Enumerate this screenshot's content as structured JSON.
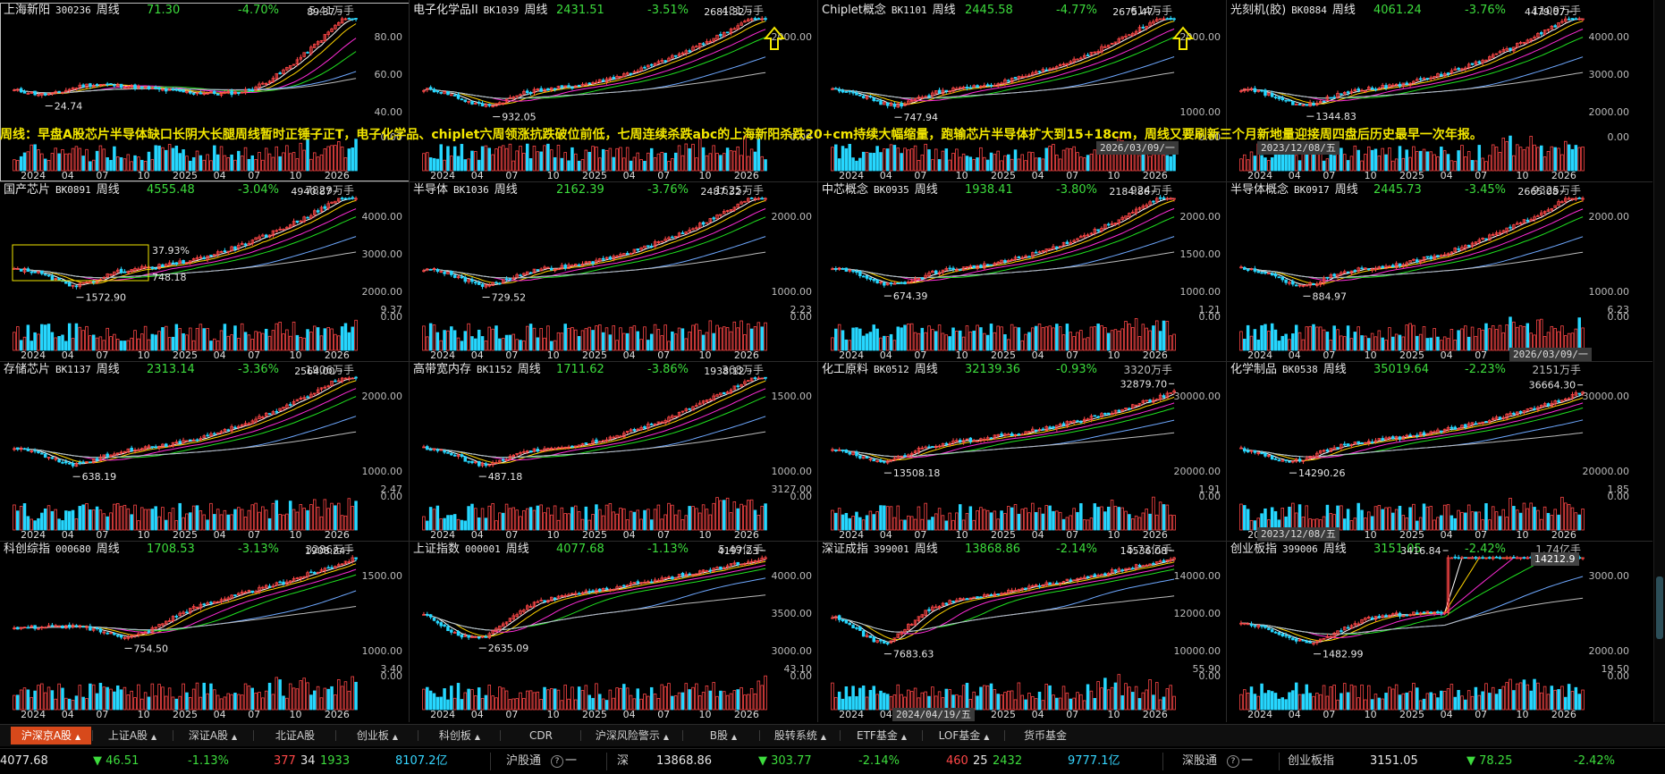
{
  "colors": {
    "up": "#ff4747",
    "down": "#3ddc3d",
    "vol_down": "#26d7ff",
    "ma": [
      "#ffffff",
      "#ffd400",
      "#ff2cd7",
      "#20e020",
      "#6ea8ff",
      "#bcbcbc"
    ],
    "accent": "#d7491b",
    "annotation": "#f2e600"
  },
  "panels": [
    {
      "name": "上海新阳",
      "code": "300236",
      "period": "周线",
      "price": "71.30",
      "change": "-4.70%",
      "volume": "5.41万手",
      "hi": "89.37",
      "lo": "24.74",
      "yticks": [
        "80.00",
        "60.00",
        "40.00",
        "0.00"
      ],
      "vol_tick": "",
      "xlabels": [
        "2024",
        "04",
        "07",
        "10",
        "2025",
        "04",
        "07",
        "10",
        "2026"
      ],
      "arrow": false
    },
    {
      "name": "电子化学品II",
      "code": "BK1039",
      "period": "周线",
      "price": "2431.51",
      "change": "-3.51%",
      "volume": "481万手",
      "hi": "2681.32",
      "lo": "932.05",
      "yticks": [
        "2000.00",
        "0.00"
      ],
      "vol_tick": "",
      "xlabels": [
        "2024",
        "04",
        "07",
        "10",
        "2025",
        "04",
        "07",
        "10",
        "2026"
      ],
      "arrow": true
    },
    {
      "name": "Chiplet概念",
      "code": "BK1101",
      "period": "周线",
      "price": "2445.58",
      "change": "-4.77%",
      "volume": "614万手",
      "hi": "2675.47",
      "lo": "747.94",
      "yticks": [
        "2000.00",
        "1000.00",
        "0.00"
      ],
      "vol_tick": "",
      "xlabels": [
        "2024",
        "04",
        "07",
        "10",
        "2025",
        "04",
        "07",
        "10",
        "2026"
      ],
      "arrow": true
    },
    {
      "name": "光刻机(胶)",
      "code": "BK0884",
      "period": "周线",
      "price": "4061.24",
      "change": "-3.76%",
      "volume": "1109万手",
      "hi": "4479.07",
      "lo": "1344.83",
      "yticks": [
        "4000.00",
        "3000.00",
        "2000.00",
        "0.00"
      ],
      "vol_tick": "",
      "xlabels": [
        "2024",
        "04",
        "07",
        "10",
        "2025",
        "04",
        "07",
        "10",
        "2026"
      ],
      "arrow": false
    },
    {
      "name": "国产芯片",
      "code": "BK0891",
      "period": "周线",
      "price": "4555.48",
      "change": "-3.04%",
      "volume": "7829万手",
      "hi": "4940.87",
      "lo": "1572.90",
      "yticks": [
        "4000.00",
        "3000.00",
        "2000.00",
        "0.00"
      ],
      "vol_tick": "9.37",
      "xlabels": [
        "2024",
        "04",
        "07",
        "10",
        "2025",
        "04",
        "07",
        "10",
        "2026"
      ],
      "arrow": false,
      "box_pct": "37.93%",
      "box_val": "748.18"
    },
    {
      "name": "半导体",
      "code": "BK1036",
      "period": "周线",
      "price": "2162.39",
      "change": "-3.76%",
      "volume": "1625万手",
      "hi": "2487.32",
      "lo": "729.52",
      "yticks": [
        "2000.00",
        "1000.00",
        "0.00"
      ],
      "vol_tick": "2.23",
      "xlabels": [
        "2024",
        "04",
        "07",
        "10",
        "2025",
        "04",
        "07",
        "10",
        "2026"
      ],
      "arrow": false
    },
    {
      "name": "中芯概念",
      "code": "BK0935",
      "period": "周线",
      "price": "1938.41",
      "change": "-3.80%",
      "volume": "924万手",
      "hi": "2184.86",
      "lo": "674.39",
      "yticks": [
        "2000.00",
        "1500.00",
        "1000.00",
        "0.00"
      ],
      "vol_tick": "1.21",
      "xlabels": [
        "2024",
        "04",
        "07",
        "10",
        "2025",
        "04",
        "07",
        "10",
        "2026"
      ],
      "arrow": false
    },
    {
      "name": "半导体概念",
      "code": "BK0917",
      "period": "周线",
      "price": "2445.73",
      "change": "-3.45%",
      "volume": "9325万手",
      "hi": "2665.08",
      "lo": "884.97",
      "yticks": [
        "2000.00",
        "1000.00",
        "0.00"
      ],
      "vol_tick": "6.23",
      "xlabels": [
        "2024",
        "04",
        "07",
        "10",
        "2025",
        "04",
        "07",
        "10",
        "2026"
      ],
      "arrow": false
    },
    {
      "name": "存储芯片",
      "code": "BK1137",
      "period": "周线",
      "price": "2313.14",
      "change": "-3.36%",
      "volume": "1906万手",
      "hi": "2564.00",
      "lo": "638.19",
      "yticks": [
        "2000.00",
        "1000.00",
        "0.00"
      ],
      "vol_tick": "2.47",
      "xlabels": [
        "2024",
        "04",
        "07",
        "10",
        "2025",
        "04",
        "07",
        "10",
        "2026"
      ],
      "arrow": false
    },
    {
      "name": "高带宽内存",
      "code": "BK1152",
      "period": "周线",
      "price": "1711.62",
      "change": "-3.86%",
      "volume": "368万手",
      "hi": "1938.12",
      "lo": "487.18",
      "yticks": [
        "1500.00",
        "1000.00",
        "0.00"
      ],
      "vol_tick": "3127.00",
      "xlabels": [
        "2024",
        "04",
        "07",
        "10",
        "2025",
        "04",
        "07",
        "10",
        "2026"
      ],
      "arrow": false
    },
    {
      "name": "化工原料",
      "code": "BK0512",
      "period": "周线",
      "price": "32139.36",
      "change": "-0.93%",
      "volume": "3320万手",
      "hi": "32879.70",
      "lo": "13508.18",
      "yticks": [
        "30000.00",
        "20000.00",
        "0.00"
      ],
      "vol_tick": "1.91",
      "xlabels": [
        "2024",
        "04",
        "07",
        "10",
        "2025",
        "04",
        "07",
        "10",
        "2026"
      ],
      "arrow": false
    },
    {
      "name": "化学制品",
      "code": "BK0538",
      "period": "周线",
      "price": "35019.64",
      "change": "-2.23%",
      "volume": "2151万手",
      "hi": "36664.30",
      "lo": "14290.26",
      "yticks": [
        "30000.00",
        "20000.00",
        "0.00"
      ],
      "vol_tick": "1.85",
      "xlabels": [
        "2024",
        "04",
        "07",
        "10",
        "2025",
        "04",
        "07",
        "10",
        "2026"
      ],
      "arrow": false
    },
    {
      "name": "科创综指",
      "code": "000680",
      "period": "周线",
      "price": "1708.53",
      "change": "-3.13%",
      "volume": "3286万手",
      "hi": "1908.84",
      "lo": "754.50",
      "yticks": [
        "1500.00",
        "1000.00",
        "0.00"
      ],
      "vol_tick": "3.40",
      "xlabels": [
        "2024",
        "04",
        "07",
        "10",
        "2025",
        "04",
        "07",
        "10",
        "2026"
      ],
      "arrow": false
    },
    {
      "name": "上证指数",
      "code": "000001",
      "period": "周线",
      "price": "4077.68",
      "change": "-1.13%",
      "volume": "5.49亿手",
      "hi": "4197.23",
      "lo": "2635.09",
      "yticks": [
        "4000.00",
        "3500.00",
        "3000.00",
        "0.00"
      ],
      "vol_tick": "43.10",
      "xlabels": [
        "2024",
        "04",
        "07",
        "10",
        "2025",
        "04",
        "07",
        "10",
        "2026"
      ],
      "arrow": false
    },
    {
      "name": "深证成指",
      "code": "399001",
      "period": "周线",
      "price": "13868.86",
      "change": "-2.14%",
      "volume": "5.73亿手",
      "hi": "14536.08",
      "lo": "7683.63",
      "yticks": [
        "14000.00",
        "12000.00",
        "10000.00",
        "0.00"
      ],
      "vol_tick": "55.90",
      "xlabels": [
        "2024",
        "04",
        "07",
        "10",
        "2025",
        "04",
        "07",
        "10",
        "2026"
      ],
      "arrow": false
    },
    {
      "name": "创业板指",
      "code": "399006",
      "period": "周线",
      "price": "3151.05",
      "change": "-2.42%",
      "volume": "1.74亿手",
      "hi": "3416.84",
      "lo": "1482.99",
      "yticks": [
        "3000.00",
        "2000.00",
        "0.00"
      ],
      "vol_tick": "19.50",
      "xlabels": [
        "2024",
        "04",
        "07",
        "10",
        "2025",
        "04",
        "07",
        "10",
        "2026"
      ],
      "arrow": false
    }
  ],
  "overlay_text": "周线：早盘A股芯片半导体缺口长阴大长腿周线暂时正锤子正T，电子化学品、chiplet六周领涨抗跌破位前低，七周连续杀跌abc的上海新阳杀跌20+cm持续大幅缩量，跑输芯片半导体扩大到15+18cm，周线又要刷新三个月新地量迎接周四盘后历史最早一次年报。",
  "date_tags": [
    "2026/03/09/一",
    "2023/12/08/五",
    "2026/03/09/一",
    "2023/12/08/五",
    "2024/04/19/五"
  ],
  "cursor_value": "14212.9",
  "tabs": [
    {
      "label": "沪深京A股",
      "caret": true,
      "active": true
    },
    {
      "label": "上证A股",
      "caret": true
    },
    {
      "label": "深证A股",
      "caret": true
    },
    {
      "label": "北证A股",
      "caret": false
    },
    {
      "label": "创业板",
      "caret": true
    },
    {
      "label": "科创板",
      "caret": true
    },
    {
      "label": "CDR",
      "caret": false
    },
    {
      "label": "沪深风险警示",
      "caret": true
    },
    {
      "label": "B股",
      "caret": true
    },
    {
      "label": "股转系统",
      "caret": true
    },
    {
      "label": "ETF基金",
      "caret": true
    },
    {
      "label": "LOF基金",
      "caret": true
    },
    {
      "label": "货币基金",
      "caret": false
    }
  ],
  "status": {
    "sh_index": "4077.68",
    "sh_change": "▼ 46.51",
    "sh_pct": "-1.13%",
    "sh_up": "377",
    "sh_flat": "34",
    "sh_down": "1933",
    "sh_amount": "8107.2亿",
    "hgt_label": "沪股通",
    "hgt_icon": "?",
    "hgt_val": "一",
    "sz_label": "深",
    "sz_index": "13868.86",
    "sz_change": "▼ 303.77",
    "sz_pct": "-2.14%",
    "sz_up": "460",
    "sz_flat": "25",
    "sz_down": "2432",
    "sz_amount": "9777.1亿",
    "sgt_label": "深股通",
    "sgt_icon": "?",
    "sgt_val": "一",
    "cyb_label": "创业板指",
    "cyb_index": "3151.05",
    "cyb_change": "▼ 78.25",
    "cyb_pct": "-2.42%"
  }
}
